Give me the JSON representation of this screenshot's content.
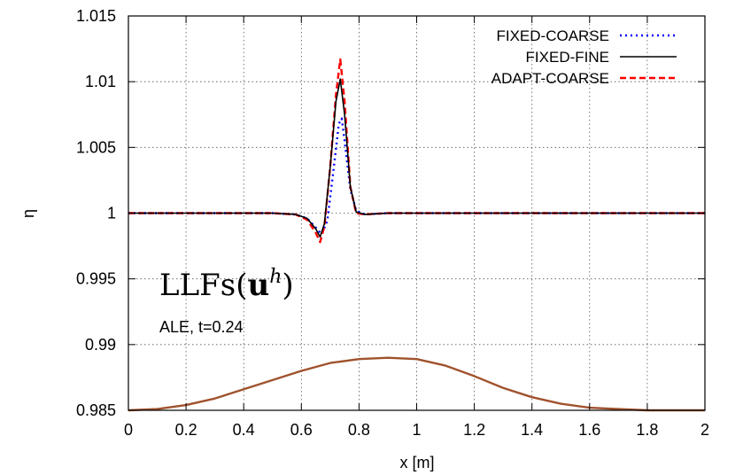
{
  "chart_data": {
    "type": "line",
    "xlabel": "x [m]",
    "ylabel": "η",
    "xlim": [
      0,
      2
    ],
    "ylim": [
      0.985,
      1.015
    ],
    "x_ticks": [
      "0",
      "0.2",
      "0.4",
      "0.6",
      "0.8",
      "1",
      "1.2",
      "1.4",
      "1.6",
      "1.8",
      "2"
    ],
    "y_ticks": [
      "0.985",
      "0.99",
      "0.995",
      "1",
      "1.005",
      "1.01",
      "1.015"
    ],
    "grid": true,
    "legend_position": "top-right",
    "annotations": [
      "LLFs(u^h)",
      "ALE, t=0.24"
    ],
    "series": [
      {
        "name": "FIXED-COARSE",
        "color": "#0000ff",
        "style": "dotted",
        "points": [
          [
            0,
            1.0
          ],
          [
            0.5,
            1.0
          ],
          [
            0.58,
            0.9999
          ],
          [
            0.62,
            0.9996
          ],
          [
            0.65,
            0.9989
          ],
          [
            0.67,
            0.9984
          ],
          [
            0.69,
            0.9994
          ],
          [
            0.71,
            1.003
          ],
          [
            0.73,
            1.0068
          ],
          [
            0.74,
            1.0072
          ],
          [
            0.75,
            1.0055
          ],
          [
            0.77,
            1.0018
          ],
          [
            0.79,
            1.0002
          ],
          [
            0.82,
            0.9999
          ],
          [
            0.9,
            1.0
          ],
          [
            2,
            1.0
          ]
        ]
      },
      {
        "name": "FIXED-FINE",
        "color": "#000000",
        "style": "solid",
        "points": [
          [
            0,
            1.0
          ],
          [
            0.5,
            1.0
          ],
          [
            0.58,
            0.9999
          ],
          [
            0.62,
            0.9996
          ],
          [
            0.65,
            0.9988
          ],
          [
            0.665,
            0.9982
          ],
          [
            0.68,
            0.9992
          ],
          [
            0.7,
            1.0035
          ],
          [
            0.72,
            1.0085
          ],
          [
            0.735,
            1.0102
          ],
          [
            0.75,
            1.0075
          ],
          [
            0.77,
            1.002
          ],
          [
            0.79,
            1.0001
          ],
          [
            0.82,
            0.9999
          ],
          [
            0.9,
            1.0
          ],
          [
            2,
            1.0
          ]
        ]
      },
      {
        "name": "ADAPT-COARSE",
        "color": "#ff0000",
        "style": "dashed",
        "points": [
          [
            0,
            1.0
          ],
          [
            0.5,
            1.0
          ],
          [
            0.58,
            0.9999
          ],
          [
            0.62,
            0.9995
          ],
          [
            0.65,
            0.9985
          ],
          [
            0.665,
            0.9978
          ],
          [
            0.68,
            0.999
          ],
          [
            0.7,
            1.0035
          ],
          [
            0.72,
            1.009
          ],
          [
            0.735,
            1.0117
          ],
          [
            0.75,
            1.0085
          ],
          [
            0.77,
            1.002
          ],
          [
            0.79,
            1.0
          ],
          [
            0.82,
            0.9999
          ],
          [
            0.9,
            1.0
          ],
          [
            2,
            1.0
          ]
        ]
      },
      {
        "color": "#a0522d",
        "style": "solid",
        "points": [
          [
            0,
            0.985
          ],
          [
            0.1,
            0.9851
          ],
          [
            0.2,
            0.9854
          ],
          [
            0.3,
            0.9859
          ],
          [
            0.4,
            0.9866
          ],
          [
            0.5,
            0.9873
          ],
          [
            0.6,
            0.988
          ],
          [
            0.7,
            0.9886
          ],
          [
            0.8,
            0.9889
          ],
          [
            0.9,
            0.989
          ],
          [
            1.0,
            0.9889
          ],
          [
            1.1,
            0.9884
          ],
          [
            1.2,
            0.9876
          ],
          [
            1.3,
            0.9867
          ],
          [
            1.4,
            0.986
          ],
          [
            1.5,
            0.9855
          ],
          [
            1.6,
            0.9852
          ],
          [
            1.7,
            0.9851
          ],
          [
            1.8,
            0.985
          ],
          [
            2,
            0.985
          ]
        ]
      }
    ]
  }
}
